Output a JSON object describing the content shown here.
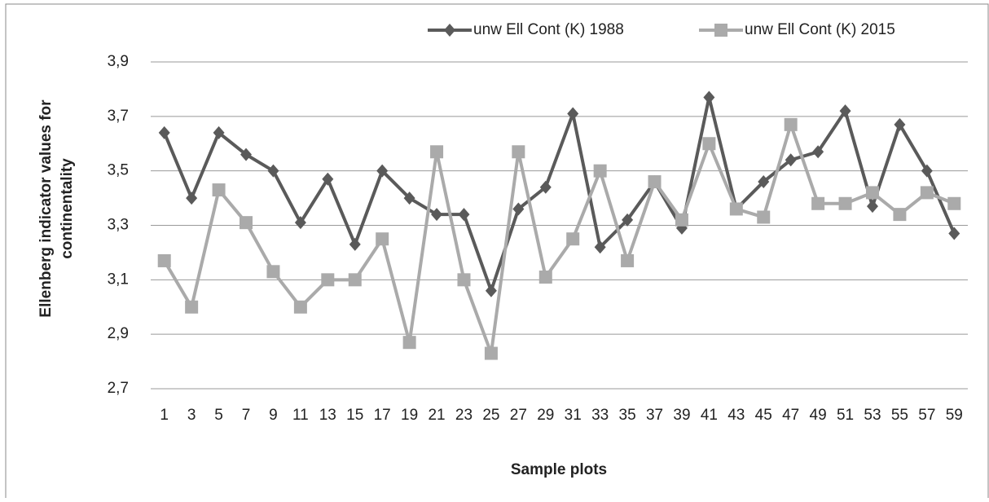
{
  "chart_data": {
    "type": "line",
    "x_label": "Sample plots",
    "y_label": "Ellenberg indicator values for continentality",
    "categories": [
      "1",
      "3",
      "5",
      "7",
      "9",
      "11",
      "13",
      "15",
      "17",
      "19",
      "21",
      "23",
      "25",
      "27",
      "29",
      "31",
      "33",
      "35",
      "37",
      "39",
      "41",
      "43",
      "45",
      "47",
      "49",
      "51",
      "53",
      "55",
      "57",
      "59"
    ],
    "series": [
      {
        "name": "unw Ell Cont (K) 1988",
        "color": "#5a5a5a",
        "marker": "diamond",
        "values": [
          3.64,
          3.4,
          3.64,
          3.56,
          3.5,
          3.31,
          3.47,
          3.23,
          3.5,
          3.4,
          3.34,
          3.34,
          3.06,
          3.36,
          3.44,
          3.71,
          3.22,
          3.32,
          3.46,
          3.29,
          3.77,
          3.36,
          3.46,
          3.54,
          3.57,
          3.72,
          3.37,
          3.67,
          3.5,
          3.27
        ]
      },
      {
        "name": "unw Ell Cont (K) 2015",
        "color": "#aaaaaa",
        "marker": "square",
        "values": [
          3.17,
          3.0,
          3.43,
          3.31,
          3.13,
          3.0,
          3.1,
          3.1,
          3.25,
          2.87,
          3.57,
          3.1,
          2.83,
          3.57,
          3.11,
          3.25,
          3.5,
          3.17,
          3.46,
          3.32,
          3.6,
          3.36,
          3.33,
          3.67,
          3.38,
          3.38,
          3.42,
          3.34,
          3.42,
          3.38
        ]
      }
    ],
    "ylim": [
      2.7,
      3.9
    ],
    "yticks": [
      {
        "value": 2.7,
        "label": "2,7"
      },
      {
        "value": 2.9,
        "label": "2,9"
      },
      {
        "value": 3.1,
        "label": "3,1"
      },
      {
        "value": 3.3,
        "label": "3,3"
      },
      {
        "value": 3.5,
        "label": "3,5"
      },
      {
        "value": 3.7,
        "label": "3,7"
      },
      {
        "value": 3.9,
        "label": "3,9"
      }
    ],
    "grid": true,
    "legend": "top"
  }
}
